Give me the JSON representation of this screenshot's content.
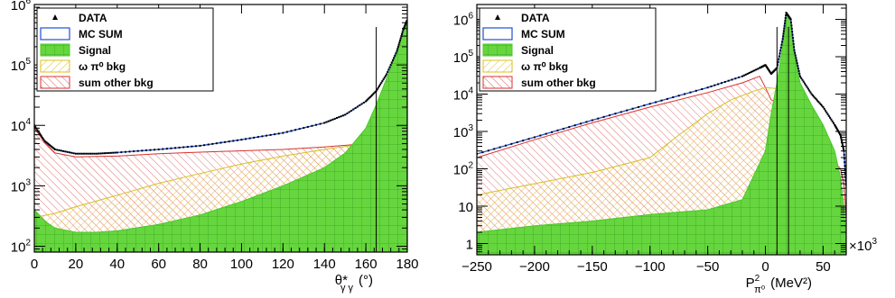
{
  "chart_data": [
    {
      "type": "area",
      "log_y": true,
      "xlim": [
        0,
        180
      ],
      "ylim": [
        80,
        1000000
      ],
      "xticks": [
        0,
        20,
        40,
        60,
        80,
        100,
        120,
        140,
        160,
        180
      ],
      "xtick_labels": [
        "0",
        "20",
        "40",
        "60",
        "80",
        "100",
        "120",
        "140",
        "160",
        "180"
      ],
      "ytick_labels": [
        {
          "value": 100,
          "mant": "10",
          "exp": "2"
        },
        {
          "value": 1000,
          "mant": "10",
          "exp": "3"
        },
        {
          "value": 10000,
          "mant": "10",
          "exp": "4"
        },
        {
          "value": 100000,
          "mant": "10",
          "exp": "5"
        },
        {
          "value": 1000000,
          "mant": "10",
          "exp": "6"
        }
      ],
      "xlabel": {
        "base": "θ*",
        "sub": "γ γ",
        "unit": "(°)"
      },
      "cut_lines": [
        165
      ],
      "legend": {
        "placement": "top-left",
        "entries": [
          {
            "key": "data",
            "label": "DATA"
          },
          {
            "key": "mc",
            "label": "MC SUM"
          },
          {
            "key": "signal",
            "label": "Signal"
          },
          {
            "key": "omega",
            "label": "ω   π⁰ bkg"
          },
          {
            "key": "other",
            "label": "sum other bkg"
          }
        ]
      },
      "colors": {
        "data": "#000000",
        "mc": "#1f4fd6",
        "signal": "#4cc82c",
        "omega": "#d8c020",
        "other": "#d83030"
      },
      "series": [
        {
          "key": "mc",
          "x": [
            0,
            5,
            10,
            20,
            30,
            40,
            60,
            80,
            100,
            120,
            140,
            150,
            160,
            165,
            170,
            175,
            178,
            180
          ],
          "y": [
            10000,
            5500,
            4000,
            3400,
            3400,
            3550,
            4000,
            4600,
            5800,
            7500,
            11000,
            15000,
            25000,
            37000,
            70000,
            170000,
            380000,
            560000
          ]
        },
        {
          "key": "signal",
          "x": [
            0,
            5,
            10,
            20,
            30,
            40,
            60,
            80,
            100,
            120,
            140,
            150,
            160,
            165,
            170,
            175,
            178,
            180
          ],
          "y": [
            400,
            260,
            200,
            170,
            170,
            180,
            230,
            330,
            550,
            1000,
            2000,
            3500,
            9000,
            22000,
            60000,
            160000,
            370000,
            550000
          ]
        },
        {
          "key": "omega",
          "x": [
            0,
            10,
            20,
            40,
            60,
            80,
            100,
            120,
            140,
            160,
            170,
            180
          ],
          "y": [
            300,
            350,
            450,
            700,
            1100,
            1600,
            2300,
            3100,
            4000,
            5000,
            5500,
            6000
          ]
        },
        {
          "key": "other",
          "x": [
            0,
            5,
            10,
            20,
            40,
            60,
            80,
            100,
            120,
            140,
            160,
            170,
            180
          ],
          "y": [
            9000,
            5200,
            3500,
            3000,
            3100,
            3400,
            3600,
            3800,
            4000,
            4400,
            5000,
            5700,
            7000
          ]
        }
      ]
    },
    {
      "type": "area",
      "log_y": true,
      "xlim": [
        -250,
        70
      ],
      "ylim": [
        1,
        2000000
      ],
      "xticks": [
        -250,
        -200,
        -150,
        -100,
        -50,
        0,
        50
      ],
      "xtick_labels": [
        "−250",
        "−200",
        "−150",
        "−100",
        "−50",
        "0",
        "50"
      ],
      "ytick_labels": [
        {
          "value": 1,
          "mant": "1",
          "exp": ""
        },
        {
          "value": 10,
          "mant": "10",
          "exp": ""
        },
        {
          "value": 100,
          "mant": "10",
          "exp": "2"
        },
        {
          "value": 1000,
          "mant": "10",
          "exp": "3"
        },
        {
          "value": 10000,
          "mant": "10",
          "exp": "4"
        },
        {
          "value": 100000,
          "mant": "10",
          "exp": "5"
        },
        {
          "value": 1000000,
          "mant": "10",
          "exp": "6"
        }
      ],
      "x_multiplier": "×10",
      "x_multiplier_exp": "3",
      "xlabel": {
        "base": "P",
        "sup": "2",
        "sub": "π⁰",
        "unit": "(MeV²)"
      },
      "cut_lines": [
        10,
        20
      ],
      "legend": {
        "placement": "top-left",
        "entries": [
          {
            "key": "data",
            "label": "DATA"
          },
          {
            "key": "mc",
            "label": "MC SUM"
          },
          {
            "key": "signal",
            "label": "Signal"
          },
          {
            "key": "omega",
            "label": "ω   π⁰ bkg"
          },
          {
            "key": "other",
            "label": "sum other bkg"
          }
        ]
      },
      "colors": {
        "data": "#000000",
        "mc": "#1f4fd6",
        "signal": "#4cc82c",
        "omega": "#d8c020",
        "other": "#d83030"
      },
      "series": [
        {
          "key": "mc",
          "x": [
            -250,
            -200,
            -150,
            -100,
            -50,
            -20,
            -5,
            0,
            5,
            10,
            15,
            18,
            22,
            25,
            30,
            40,
            50,
            60,
            65,
            68,
            70
          ],
          "y": [
            250,
            700,
            2000,
            5500,
            15000,
            30000,
            50000,
            60000,
            35000,
            50000,
            300000,
            1500000,
            1000000,
            150000,
            30000,
            10000,
            4500,
            1500,
            800,
            300,
            30
          ]
        },
        {
          "key": "signal",
          "x": [
            -250,
            -200,
            -150,
            -100,
            -50,
            -20,
            0,
            5,
            10,
            15,
            18,
            22,
            25,
            30,
            40,
            50,
            60,
            65,
            68,
            70
          ],
          "y": [
            2,
            3,
            4,
            6,
            8,
            15,
            300,
            3000,
            20000,
            200000,
            1400000,
            900000,
            120000,
            20000,
            5000,
            1500,
            300,
            60,
            10,
            1
          ]
        },
        {
          "key": "omega",
          "x": [
            -250,
            -200,
            -150,
            -100,
            -75,
            -50,
            -30,
            -10,
            0,
            10,
            20,
            30,
            40,
            50,
            60,
            65,
            68,
            70
          ],
          "y": [
            20,
            40,
            80,
            200,
            800,
            3000,
            7000,
            12000,
            15000,
            14000,
            9000,
            5000,
            1800,
            600,
            200,
            40,
            5,
            1
          ]
        },
        {
          "key": "other",
          "x": [
            -250,
            -200,
            -150,
            -100,
            -50,
            -20,
            -5,
            0,
            5,
            10,
            15,
            20,
            30,
            40,
            50,
            60,
            65,
            68,
            70
          ],
          "y": [
            200,
            600,
            1700,
            4500,
            11000,
            20000,
            30000,
            15000,
            7000,
            6000,
            4500,
            3000,
            1500,
            700,
            300,
            150,
            100,
            40,
            5
          ]
        }
      ]
    }
  ]
}
